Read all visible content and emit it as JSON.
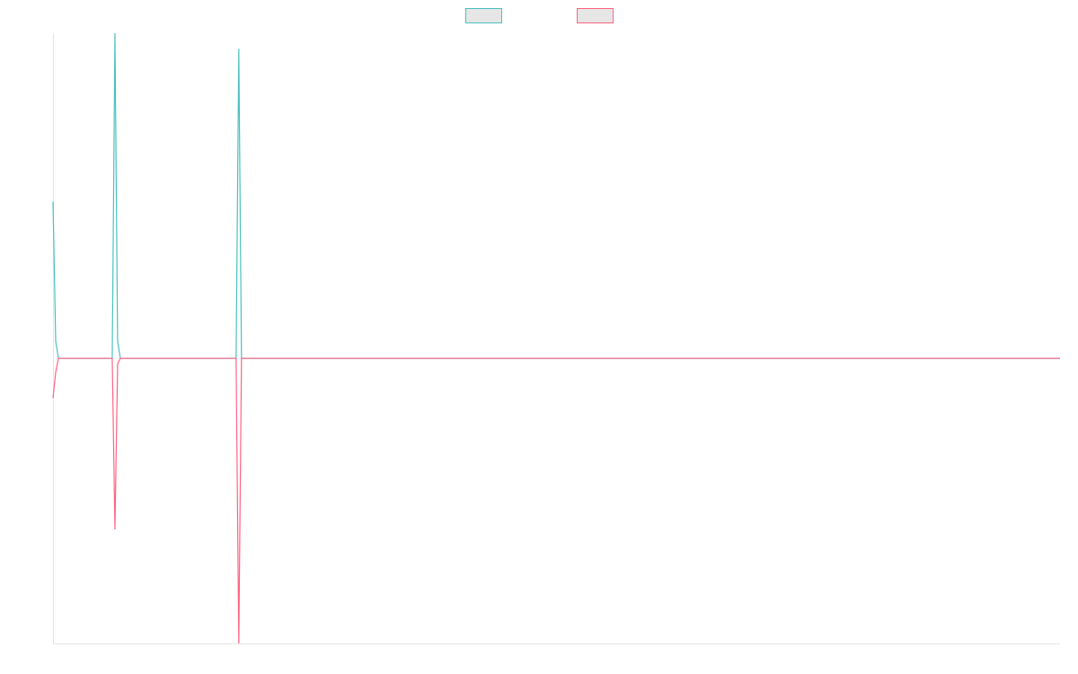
{
  "chart_data": {
    "type": "line",
    "x": [
      0,
      1,
      2,
      22,
      23,
      24,
      25,
      68,
      69,
      70,
      374
    ],
    "series": [
      {
        "color": "#4bc0c0",
        "values": [
          0.55,
          0.06,
          0,
          0,
          1.14,
          0.06,
          0,
          0,
          1.085,
          0,
          0
        ]
      },
      {
        "color": "#ff6384",
        "values": [
          -0.14,
          -0.05,
          0,
          0,
          -0.6,
          -0.02,
          0,
          0,
          -1,
          0,
          0
        ]
      }
    ],
    "xlim": [
      0,
      374
    ],
    "ylim": [
      -1,
      1.14
    ],
    "legend": "top"
  }
}
